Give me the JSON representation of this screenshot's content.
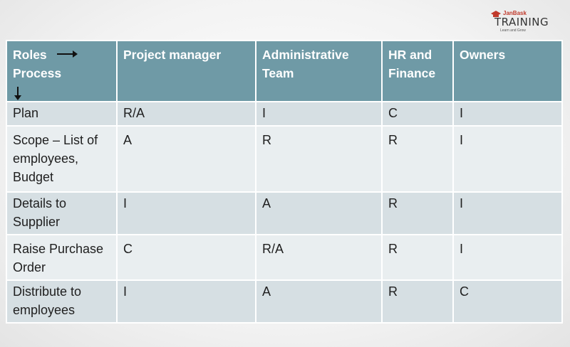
{
  "logo": {
    "brand_small": "JanBask",
    "brand_main": "TRAINING",
    "tagline": "Learn and Grow"
  },
  "table": {
    "headers": {
      "roles_process_line1": "Roles",
      "roles_process_line2": "Process",
      "col1": "Project manager",
      "col2": "Administrative Team",
      "col3": "HR and Finance",
      "col4": "Owners"
    },
    "rows": [
      {
        "process": "Plan",
        "pm": "R/A",
        "admin": "I",
        "hr": "C",
        "owners": "I"
      },
      {
        "process": "Scope – List of employees, Budget",
        "pm": "A",
        "admin": "R",
        "hr": "R",
        "owners": "I"
      },
      {
        "process": "Details to Supplier",
        "pm": "I",
        "admin": "A",
        "hr": "R",
        "owners": "I"
      },
      {
        "process": "Raise Purchase Order",
        "pm": "C",
        "admin": "R/A",
        "hr": "R",
        "owners": "I"
      },
      {
        "process": "Distribute to employees",
        "pm": "I",
        "admin": "A",
        "hr": "R",
        "owners": "C"
      }
    ]
  },
  "colors": {
    "header_bg": "#6f9aa6",
    "row_dark": "#d6dfe3",
    "row_light": "#e9eef0",
    "brand_red": "#c0392b"
  }
}
